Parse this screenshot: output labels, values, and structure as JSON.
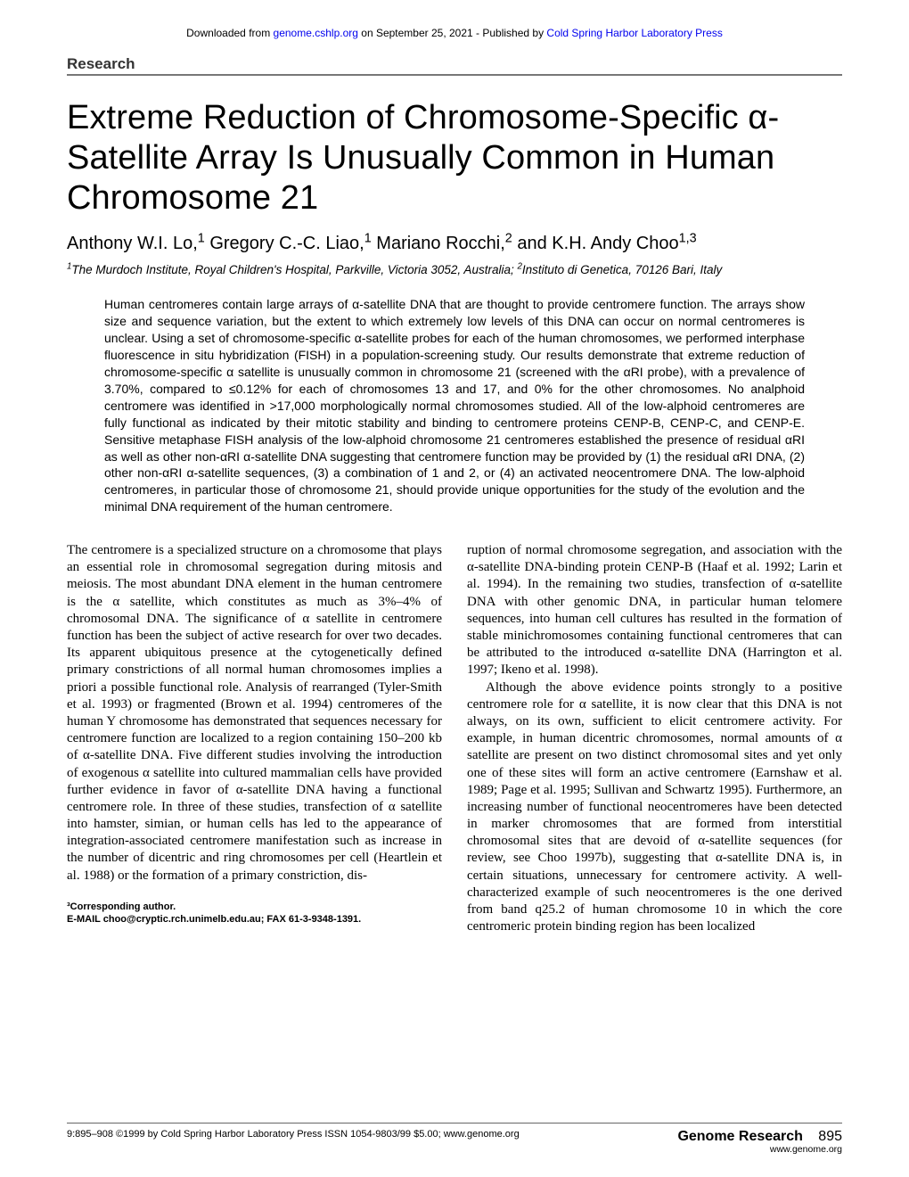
{
  "download": {
    "prefix": "Downloaded from ",
    "link1": "genome.cshlp.org",
    "mid": " on September 25, 2021 - Published by ",
    "link2": "Cold Spring Harbor Laboratory Press"
  },
  "section_label": "Research",
  "title": "Extreme Reduction of Chromosome-Specific α-Satellite Array Is Unusually Common in Human Chromosome 21",
  "authors_html": "Anthony W.I. Lo,<sup>1</sup> Gregory C.-C. Liao,<sup>1</sup> Mariano Rocchi,<sup>2</sup> and K.H. Andy Choo<sup>1,3</sup>",
  "affiliations_html": "<sup>1</sup>The Murdoch Institute, Royal Children's Hospital, Parkville, Victoria 3052, Australia; <sup>2</sup>Instituto di Genetica, 70126 Bari, Italy",
  "abstract": "Human centromeres contain large arrays of α-satellite DNA that are thought to provide centromere function. The arrays show size and sequence variation, but the extent to which extremely low levels of this DNA can occur on normal centromeres is unclear. Using a set of chromosome-specific α-satellite probes for each of the human chromosomes, we performed interphase fluorescence in situ hybridization (FISH) in a population-screening study. Our results demonstrate that extreme reduction of chromosome-specific α satellite is unusually common in chromosome 21 (screened with the αRI probe), with a prevalence of 3.70%, compared to ≤0.12% for each of chromosomes 13 and 17, and 0% for the other chromosomes. No analphoid centromere was identified in >17,000 morphologically normal chromosomes studied. All of the low-alphoid centromeres are fully functional as indicated by their mitotic stability and binding to centromere proteins CENP-B, CENP-C, and CENP-E. Sensitive metaphase FISH analysis of the low-alphoid chromosome 21 centromeres established the presence of residual αRI as well as other non-αRI α-satellite DNA suggesting that centromere function may be provided by (1) the residual αRI DNA, (2) other non-αRI α-satellite sequences, (3) a combination of 1 and 2, or (4) an activated neocentromere DNA. The low-alphoid centromeres, in particular those of chromosome 21, should provide unique opportunities for the study of the evolution and the minimal DNA requirement of the human centromere.",
  "col_left": {
    "p1": "The centromere is a specialized structure on a chromosome that plays an essential role in chromosomal segregation during mitosis and meiosis. The most abundant DNA element in the human centromere is the α satellite, which constitutes as much as 3%–4% of chromosomal DNA. The significance of α satellite in centromere function has been the subject of active research for over two decades. Its apparent ubiquitous presence at the cytogenetically defined primary constrictions of all normal human chromosomes implies a priori a possible functional role. Analysis of rearranged (Tyler-Smith et al. 1993) or fragmented (Brown et al. 1994) centromeres of the human Y chromosome has demonstrated that sequences necessary for centromere function are localized to a region containing 150–200 kb of α-satellite DNA. Five different studies involving the introduction of exogenous α satellite into cultured mammalian cells have provided further evidence in favor of α-satellite DNA having a functional centromere role. In three of these studies, transfection of α satellite into hamster, simian, or human cells has led to the appearance of integration-associated centromere manifestation such as increase in the number of dicentric and ring chromosomes per cell (Heartlein et al. 1988) or the formation of a primary constriction, dis-"
  },
  "col_right": {
    "p1": "ruption of normal chromosome segregation, and association with the α-satellite DNA-binding protein CENP-B (Haaf et al. 1992; Larin et al. 1994). In the remaining two studies, transfection of α-satellite DNA with other genomic DNA, in particular human telomere sequences, into human cell cultures has resulted in the formation of stable minichromosomes containing functional centromeres that can be attributed to the introduced α-satellite DNA (Harrington et al. 1997; Ikeno et al. 1998).",
    "p2": "Although the above evidence points strongly to a positive centromere role for α satellite, it is now clear that this DNA is not always, on its own, sufficient to elicit centromere activity. For example, in human dicentric chromosomes, normal amounts of α satellite are present on two distinct chromosomal sites and yet only one of these sites will form an active centromere (Earnshaw et al. 1989; Page et al. 1995; Sullivan and Schwartz 1995). Furthermore, an increasing number of functional neocentromeres have been detected in marker chromosomes that are formed from interstitial chromosomal sites that are devoid of α-satellite sequences (for review, see Choo 1997b), suggesting that α-satellite DNA is, in certain situations, unnecessary for centromere activity. A well-characterized example of such neocentromeres is the one derived from band q25.2 of human chromosome 10 in which the core centromeric protein binding region has been localized"
  },
  "corresponding": {
    "l1": "³Corresponding author.",
    "l2": "E-MAIL choo@cryptic.rch.unimelb.edu.au; FAX 61-3-9348-1391."
  },
  "footer": {
    "left": "9:895–908 ©1999 by Cold Spring Harbor Laboratory Press ISSN 1054-9803/99 $5.00; www.genome.org",
    "journal": "Genome Research",
    "page": "895",
    "url": "www.genome.org"
  },
  "colors": {
    "link": "#0000ee",
    "rule": "#777777",
    "text": "#000000",
    "bg": "#ffffff"
  }
}
